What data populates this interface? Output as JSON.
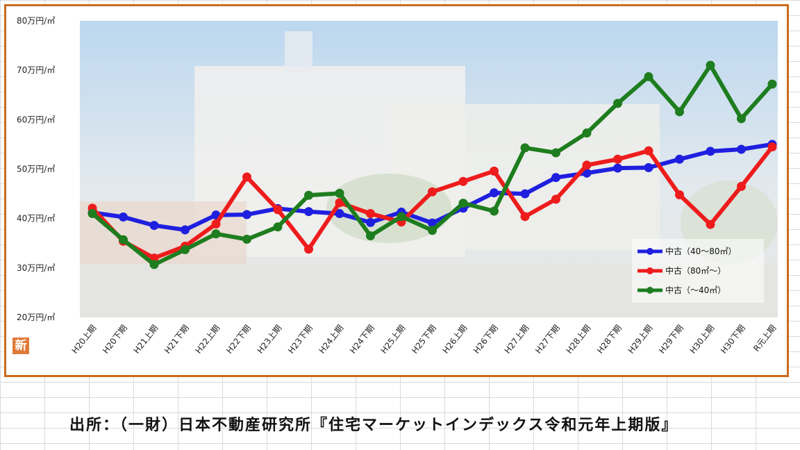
{
  "source_text": "出所：（一財）日本不動産研究所『住宅マーケットインデックス令和元年上期版』",
  "badge_glyph": "新",
  "chart_data": {
    "type": "line",
    "title": "",
    "xlabel": "",
    "ylabel": "",
    "ylim": [
      20,
      80
    ],
    "yticks": [
      20,
      30,
      40,
      50,
      60,
      70,
      80
    ],
    "ytick_labels": [
      "20万円/㎡",
      "30万円/㎡",
      "40万円/㎡",
      "50万円/㎡",
      "60万円/㎡",
      "70万円/㎡",
      "80万円/㎡"
    ],
    "categories": [
      "H20上期",
      "H20下期",
      "H21上期",
      "H21下期",
      "H22上期",
      "H22下期",
      "H23上期",
      "H23下期",
      "H24上期",
      "H24下期",
      "H25上期",
      "H25下期",
      "H26上期",
      "H26下期",
      "H27上期",
      "H27下期",
      "H28上期",
      "H28下期",
      "H29上期",
      "H29下期",
      "H30上期",
      "H30下期",
      "R元上期"
    ],
    "legend_position": "bottom-right",
    "grid": false,
    "series": [
      {
        "name": "中古（40～80㎡）",
        "color": "#1f1fe0",
        "values": [
          41.2,
          40.3,
          38.6,
          37.7,
          40.7,
          40.8,
          42.0,
          41.4,
          41.0,
          39.2,
          41.3,
          39.1,
          42.1,
          45.2,
          45.0,
          48.3,
          49.2,
          50.2,
          50.3,
          52.0,
          53.6,
          54.0,
          55.0
        ]
      },
      {
        "name": "中古（80㎡～）",
        "color": "#ee1c1c",
        "values": [
          42.1,
          35.4,
          32.0,
          34.4,
          38.9,
          48.4,
          41.8,
          33.8,
          43.2,
          41.0,
          39.3,
          45.4,
          47.5,
          49.6,
          40.4,
          43.9,
          50.8,
          52.0,
          53.7,
          44.8,
          38.8,
          46.5,
          54.5
        ]
      },
      {
        "name": "中古（～40㎡）",
        "color": "#1e7d1e",
        "values": [
          41.0,
          35.7,
          30.7,
          33.7,
          36.9,
          35.8,
          38.3,
          44.7,
          45.1,
          36.5,
          40.4,
          37.6,
          43.1,
          41.5,
          54.3,
          53.3,
          57.3,
          63.3,
          68.7,
          61.6,
          71.0,
          60.2,
          67.2
        ]
      }
    ]
  }
}
